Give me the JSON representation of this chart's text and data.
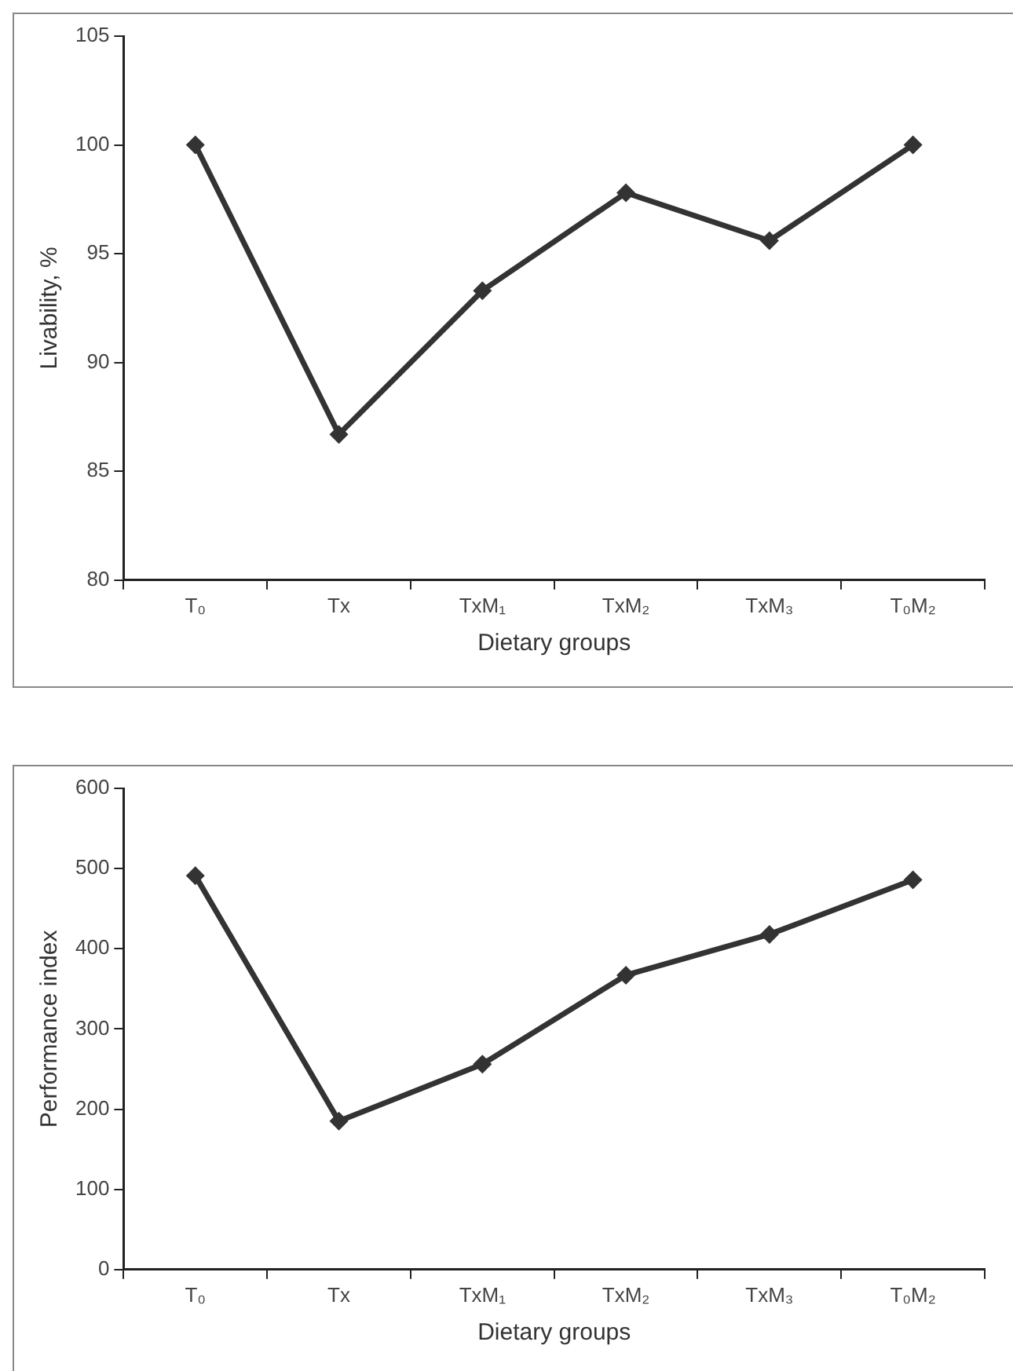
{
  "chart_data": [
    {
      "type": "line",
      "categories": [
        "T₀",
        "Tx",
        "TxM₁",
        "TxM₂",
        "TxM₃",
        "T₀M₂"
      ],
      "xlabel": "Dietary groups",
      "ylabel": "Livability, %",
      "series": [
        {
          "color": "#333333",
          "values": [
            100,
            86.7,
            93.3,
            97.8,
            95.6,
            100
          ]
        }
      ],
      "ylim": [
        80,
        105
      ],
      "yticks": [
        80,
        85,
        90,
        95,
        100,
        105
      ],
      "grid": false,
      "legend": false,
      "marker": "diamond",
      "line_style": "solid"
    },
    {
      "type": "line",
      "categories": [
        "T₀",
        "Tx",
        "TxM₁",
        "TxM₂",
        "TxM₃",
        "T₀M₂"
      ],
      "xlabel": "Dietary groups",
      "ylabel": "Performance index",
      "series": [
        {
          "color": "#333333",
          "values": [
            491,
            185,
            256,
            367,
            418,
            486
          ]
        }
      ],
      "ylim": [
        0,
        600
      ],
      "yticks": [
        0,
        100,
        200,
        300,
        400,
        500,
        600
      ],
      "grid": false,
      "legend": false,
      "marker": "diamond",
      "line_style": "solid"
    }
  ]
}
